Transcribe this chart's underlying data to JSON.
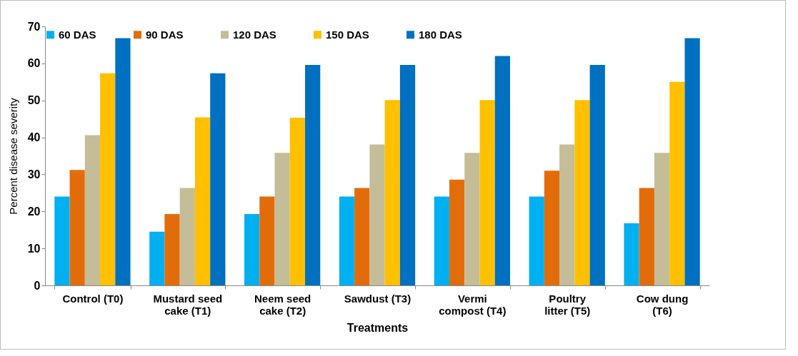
{
  "chart_data": {
    "type": "bar",
    "xlabel": "Treatments",
    "ylabel": "Percent disease severity",
    "categories": [
      "Control (T0)",
      "Mustard seed cake (T1)",
      "Neem seed cake (T2)",
      "Sawdust (T3)",
      "Vermi compost (T4)",
      "Poultry litter (T5)",
      "Cow dung (T6)"
    ],
    "series": [
      {
        "name": "60 DAS",
        "color": "#00b0f0",
        "values": [
          24,
          14.5,
          19.3,
          24,
          24,
          24,
          16.8
        ]
      },
      {
        "name": "90 DAS",
        "color": "#e36c0a",
        "values": [
          31.2,
          19.3,
          24,
          26.3,
          28.6,
          31,
          26.3
        ]
      },
      {
        "name": "120 DAS",
        "color": "#c4bd97",
        "values": [
          40.6,
          26.3,
          35.8,
          38.1,
          35.8,
          38.1,
          35.8
        ]
      },
      {
        "name": "150 DAS",
        "color": "#ffc000",
        "values": [
          57.3,
          45.4,
          45.3,
          50.1,
          50.1,
          50.1,
          55
        ]
      },
      {
        "name": "180 DAS",
        "color": "#0070c0",
        "values": [
          66.8,
          57.3,
          59.6,
          59.6,
          62,
          59.6,
          66.8
        ]
      }
    ],
    "ylim": [
      0,
      70
    ],
    "yticks": [
      0,
      10,
      20,
      30,
      40,
      50,
      60,
      70
    ],
    "grid": false,
    "legend": "top"
  }
}
